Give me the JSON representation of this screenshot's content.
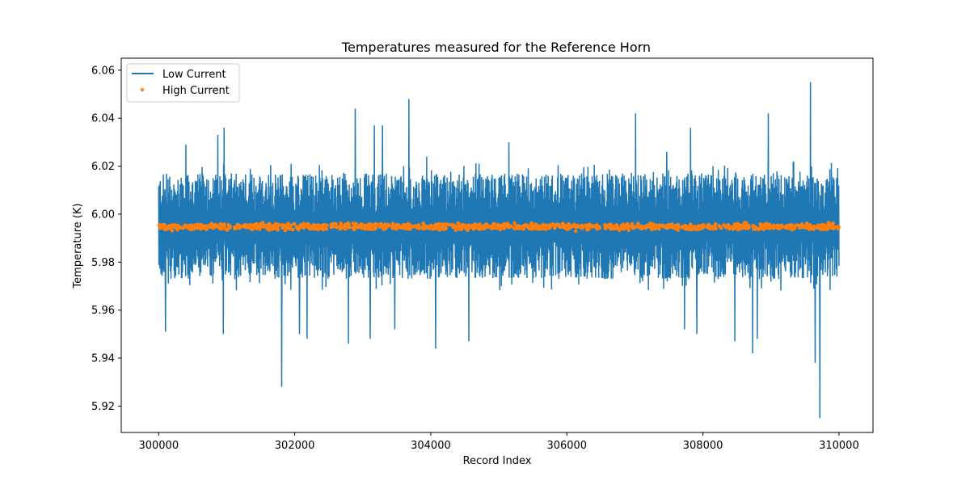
{
  "chart_data": {
    "type": "line",
    "title": "Temperatures measured for the Reference Horn",
    "xlabel": "Record Index",
    "ylabel": "Temperature (K)",
    "xlim": [
      299450,
      310500
    ],
    "ylim": [
      5.909,
      6.065
    ],
    "x_ticks": [
      300000,
      302000,
      304000,
      306000,
      308000,
      310000
    ],
    "x_tick_labels": [
      "300000",
      "302000",
      "304000",
      "306000",
      "308000",
      "310000"
    ],
    "y_ticks": [
      5.92,
      5.94,
      5.96,
      5.98,
      6.0,
      6.02,
      6.04,
      6.06
    ],
    "y_tick_labels": [
      "5.92",
      "5.94",
      "5.96",
      "5.98",
      "6.00",
      "6.02",
      "6.04",
      "6.06"
    ],
    "legend_position": "upper-left",
    "series": [
      {
        "name": "Low Current",
        "kind": "line",
        "color": "#1f77b4",
        "x_range": [
          300000,
          310000
        ],
        "typical_band": [
          5.973,
          6.015
        ],
        "mean": 5.995,
        "upper_spikes": [
          {
            "x": 300400,
            "y": 6.029
          },
          {
            "x": 300870,
            "y": 6.033
          },
          {
            "x": 300960,
            "y": 6.036
          },
          {
            "x": 302890,
            "y": 6.044
          },
          {
            "x": 303170,
            "y": 6.037
          },
          {
            "x": 303290,
            "y": 6.037
          },
          {
            "x": 303680,
            "y": 6.048
          },
          {
            "x": 303940,
            "y": 6.024
          },
          {
            "x": 304560,
            "y": 6.026
          },
          {
            "x": 305150,
            "y": 6.03
          },
          {
            "x": 307010,
            "y": 6.042
          },
          {
            "x": 307470,
            "y": 6.026
          },
          {
            "x": 307820,
            "y": 6.036
          },
          {
            "x": 308960,
            "y": 6.042
          },
          {
            "x": 309580,
            "y": 6.055
          }
        ],
        "lower_spikes": [
          {
            "x": 300100,
            "y": 5.951
          },
          {
            "x": 300950,
            "y": 5.95
          },
          {
            "x": 301810,
            "y": 5.928
          },
          {
            "x": 302070,
            "y": 5.95
          },
          {
            "x": 302180,
            "y": 5.948
          },
          {
            "x": 302790,
            "y": 5.946
          },
          {
            "x": 303110,
            "y": 5.948
          },
          {
            "x": 303470,
            "y": 5.952
          },
          {
            "x": 304070,
            "y": 5.944
          },
          {
            "x": 304560,
            "y": 5.947
          },
          {
            "x": 307730,
            "y": 5.952
          },
          {
            "x": 307910,
            "y": 5.95
          },
          {
            "x": 308470,
            "y": 5.947
          },
          {
            "x": 308730,
            "y": 5.942
          },
          {
            "x": 308800,
            "y": 5.948
          },
          {
            "x": 309650,
            "y": 5.938
          },
          {
            "x": 309720,
            "y": 5.915
          }
        ]
      },
      {
        "name": "High Current",
        "kind": "scatter",
        "color": "#ff7f0e",
        "x_range": [
          300000,
          310000
        ],
        "mean": 5.9948,
        "spread": 0.0013
      }
    ]
  }
}
